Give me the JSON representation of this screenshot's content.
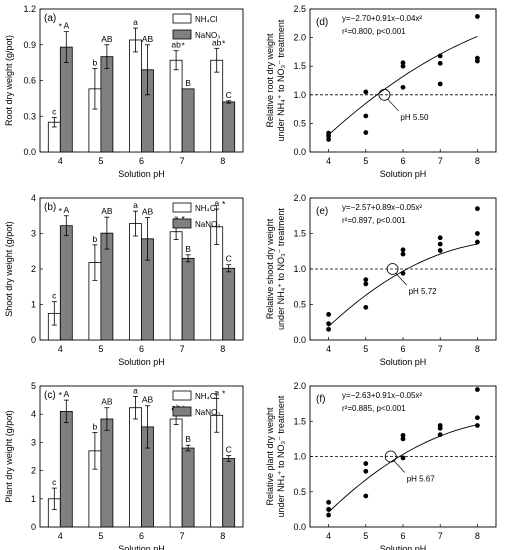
{
  "chart_data": [
    {
      "type": "bar",
      "panel": "(a)",
      "ylabel": "Root dry weight (g/pot)",
      "xlabel": "Solution pH",
      "ylim": [
        0.0,
        1.2
      ],
      "yticks": [
        "0.0",
        "0.3",
        "0.6",
        "0.9",
        "1.2"
      ],
      "yticks_values": [
        0.0,
        0.3,
        0.6,
        0.9,
        1.2
      ],
      "categories": [
        "4",
        "5",
        "6",
        "7",
        "8"
      ],
      "legend": [
        "NH₄Cl",
        "NaNO₃"
      ],
      "series": [
        {
          "name": "NH₄Cl",
          "values": [
            0.25,
            0.53,
            0.94,
            0.77,
            0.77
          ],
          "errors": [
            0.04,
            0.17,
            0.1,
            0.08,
            0.1
          ],
          "labels": [
            "c",
            "b",
            "a",
            "ab",
            "ab"
          ],
          "stars": [
            false,
            false,
            false,
            true,
            true
          ],
          "color": "#ffffff"
        },
        {
          "name": "NaNO₃",
          "values": [
            0.88,
            0.8,
            0.69,
            0.53,
            0.42
          ],
          "errors": [
            0.13,
            0.1,
            0.21,
            0.0,
            0.01
          ],
          "labels": [
            "A",
            "AB",
            "AB",
            "B",
            "C"
          ],
          "stars": [
            true,
            false,
            false,
            false,
            false
          ],
          "color": "#808080"
        }
      ]
    },
    {
      "type": "bar",
      "panel": "(b)",
      "ylabel": "Shoot dry weight (g/pot)",
      "xlabel": "Solution pH",
      "ylim": [
        0,
        4
      ],
      "yticks": [
        "0",
        "1",
        "2",
        "3",
        "4"
      ],
      "yticks_values": [
        0,
        1,
        2,
        3,
        4
      ],
      "categories": [
        "4",
        "5",
        "6",
        "7",
        "8"
      ],
      "legend": [
        "NH₄Cl",
        "NaNO₃"
      ],
      "series": [
        {
          "name": "NH₄Cl",
          "values": [
            0.75,
            2.18,
            3.28,
            3.05,
            3.19
          ],
          "errors": [
            0.33,
            0.5,
            0.35,
            0.22,
            0.5
          ],
          "labels": [
            "c",
            "b",
            "a",
            "a",
            "a"
          ],
          "stars": [
            false,
            false,
            false,
            true,
            true
          ],
          "color": "#ffffff"
        },
        {
          "name": "NaNO₃",
          "values": [
            3.22,
            3.01,
            2.85,
            2.3,
            2.02
          ],
          "errors": [
            0.28,
            0.45,
            0.6,
            0.1,
            0.1
          ],
          "labels": [
            "A",
            "AB",
            "AB",
            "B",
            "C"
          ],
          "stars": [
            true,
            false,
            false,
            false,
            false
          ],
          "color": "#808080"
        }
      ]
    },
    {
      "type": "bar",
      "panel": "(c)",
      "ylabel": "Plant dry weight (g/pot)",
      "xlabel": "Solution pH",
      "ylim": [
        0,
        5
      ],
      "yticks": [
        "0",
        "1",
        "2",
        "3",
        "4",
        "5"
      ],
      "yticks_values": [
        0,
        1,
        2,
        3,
        4,
        5
      ],
      "categories": [
        "4",
        "5",
        "6",
        "7",
        "8"
      ],
      "legend": [
        "NH₄Cl",
        "NaNO₃"
      ],
      "series": [
        {
          "name": "NH₄Cl",
          "values": [
            1.0,
            2.7,
            4.23,
            3.83,
            3.96
          ],
          "errors": [
            0.38,
            0.65,
            0.4,
            0.2,
            0.6
          ],
          "labels": [
            "c",
            "b",
            "a",
            "ab",
            "a"
          ],
          "stars": [
            false,
            false,
            false,
            true,
            true
          ],
          "color": "#ffffff"
        },
        {
          "name": "NaNO₃",
          "values": [
            4.1,
            3.83,
            3.55,
            2.8,
            2.43
          ],
          "errors": [
            0.4,
            0.4,
            0.75,
            0.1,
            0.1
          ],
          "labels": [
            "A",
            "AB",
            "AB",
            "B",
            "C"
          ],
          "stars": [
            true,
            false,
            false,
            false,
            false
          ],
          "color": "#808080"
        }
      ]
    },
    {
      "type": "scatter",
      "panel": "(d)",
      "ylabel_line1": "Relative root dry weight",
      "ylabel_line2": "under NH₄⁺ to NO₃⁻ treatment",
      "xlabel": "Solution pH",
      "xlim": [
        3.5,
        8.5
      ],
      "xticks": [
        "4",
        "5",
        "6",
        "7",
        "8"
      ],
      "xticks_values": [
        4,
        5,
        6,
        7,
        8
      ],
      "ylim": [
        0.0,
        2.5
      ],
      "yticks": [
        "0.0",
        "0.5",
        "1.0",
        "1.5",
        "2.0",
        "2.5"
      ],
      "yticks_values": [
        0.0,
        0.5,
        1.0,
        1.5,
        2.0,
        2.5
      ],
      "equation": "y=−2.70+0.91x−0.04x²",
      "stats": "r²=0.800, p<0.001",
      "fit": {
        "a": -2.7,
        "b": 0.91,
        "c": -0.04
      },
      "reference_y": 1.0,
      "threshold_x": 5.5,
      "threshold_label": "pH 5.50",
      "points": [
        [
          4,
          0.22
        ],
        [
          4,
          0.28
        ],
        [
          4,
          0.33
        ],
        [
          5,
          0.34
        ],
        [
          5,
          0.63
        ],
        [
          5,
          1.05
        ],
        [
          6,
          1.13
        ],
        [
          6,
          1.5
        ],
        [
          6,
          1.56
        ],
        [
          7,
          1.19
        ],
        [
          7,
          1.55
        ],
        [
          7,
          1.68
        ],
        [
          8,
          1.59
        ],
        [
          8,
          1.64
        ],
        [
          8,
          2.37
        ]
      ]
    },
    {
      "type": "scatter",
      "panel": "(e)",
      "ylabel_line1": "Relative shoot dry weight",
      "ylabel_line2": "under NH₄⁺ to NO₃⁻ treatment",
      "xlabel": "Solution pH",
      "xlim": [
        3.5,
        8.5
      ],
      "xticks": [
        "4",
        "5",
        "6",
        "7",
        "8"
      ],
      "xticks_values": [
        4,
        5,
        6,
        7,
        8
      ],
      "ylim": [
        0.0,
        2.0
      ],
      "yticks": [
        "0.0",
        "0.5",
        "1.0",
        "1.5",
        "2.0"
      ],
      "yticks_values": [
        0.0,
        0.5,
        1.0,
        1.5,
        2.0
      ],
      "equation": "y=−2.57+0.89x−0.05x²",
      "stats": "r²=0.897, p<0.001",
      "fit": {
        "a": -2.57,
        "b": 0.89,
        "c": -0.05
      },
      "reference_y": 1.0,
      "threshold_x": 5.72,
      "threshold_label": "pH 5.72",
      "points": [
        [
          4,
          0.15
        ],
        [
          4,
          0.23
        ],
        [
          4,
          0.36
        ],
        [
          5,
          0.46
        ],
        [
          5,
          0.79
        ],
        [
          5,
          0.85
        ],
        [
          6,
          0.94
        ],
        [
          6,
          1.21
        ],
        [
          6,
          1.27
        ],
        [
          7,
          1.26
        ],
        [
          7,
          1.35
        ],
        [
          7,
          1.44
        ],
        [
          8,
          1.38
        ],
        [
          8,
          1.5
        ],
        [
          8,
          1.85
        ]
      ]
    },
    {
      "type": "scatter",
      "panel": "(f)",
      "ylabel_line1": "Relative plant dry weight",
      "ylabel_line2": "under NH₄⁺ to NO₃⁻ treatment",
      "xlabel": "Solution pH",
      "xlim": [
        3.5,
        8.5
      ],
      "xticks": [
        "4",
        "5",
        "6",
        "7",
        "8"
      ],
      "xticks_values": [
        4,
        5,
        6,
        7,
        8
      ],
      "ylim": [
        0.0,
        2.0
      ],
      "yticks": [
        "0.0",
        "0.5",
        "1.0",
        "1.5",
        "2.0"
      ],
      "yticks_values": [
        0.0,
        0.5,
        1.0,
        1.5,
        2.0
      ],
      "equation": "y=−2.63+0.91x−0.05x²",
      "stats": "r²=0.885, p<0.001",
      "fit": {
        "a": -2.63,
        "b": 0.91,
        "c": -0.05
      },
      "reference_y": 1.0,
      "threshold_x": 5.67,
      "threshold_label": "pH 5.67",
      "points": [
        [
          4,
          0.17
        ],
        [
          4,
          0.25
        ],
        [
          4,
          0.35
        ],
        [
          5,
          0.44
        ],
        [
          5,
          0.79
        ],
        [
          5,
          0.9
        ],
        [
          6,
          0.98
        ],
        [
          6,
          1.25
        ],
        [
          6,
          1.3
        ],
        [
          7,
          1.31
        ],
        [
          7,
          1.4
        ],
        [
          7,
          1.44
        ],
        [
          8,
          1.44
        ],
        [
          8,
          1.55
        ],
        [
          8,
          1.95
        ]
      ]
    }
  ]
}
